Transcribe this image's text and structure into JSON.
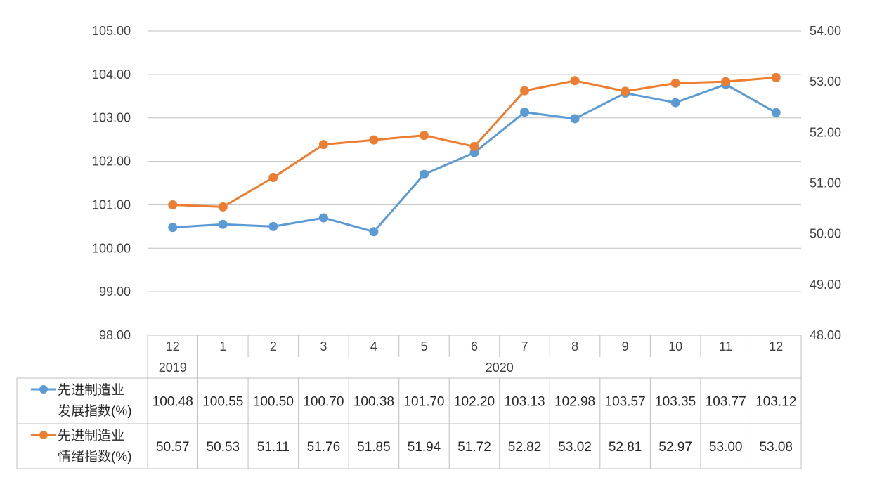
{
  "chart_data": {
    "type": "line",
    "x": [
      "12",
      "1",
      "2",
      "3",
      "4",
      "5",
      "6",
      "7",
      "8",
      "9",
      "10",
      "11",
      "12"
    ],
    "year_groups": [
      {
        "label": "2019",
        "start": 0,
        "end": 0
      },
      {
        "label": "2020",
        "start": 1,
        "end": 12
      }
    ],
    "y_left": {
      "ylim": [
        98,
        105
      ],
      "ticks": [
        "98.00",
        "99.00",
        "100.00",
        "101.00",
        "102.00",
        "103.00",
        "104.00",
        "105.00"
      ]
    },
    "y_right": {
      "ylim": [
        48,
        54
      ],
      "ticks": [
        "48.00",
        "49.00",
        "50.00",
        "51.00",
        "52.00",
        "53.00",
        "54.00"
      ]
    },
    "grid": true,
    "legend_placement": "table-left",
    "series": [
      {
        "name_lines": [
          "先进制造业",
          "发展指数(%)"
        ],
        "axis": "left",
        "color": "#5b9bd5",
        "values": [
          100.48,
          100.55,
          100.5,
          100.7,
          100.38,
          101.7,
          102.2,
          103.13,
          102.98,
          103.57,
          103.35,
          103.77,
          103.12
        ],
        "labels": [
          "100.48",
          "100.55",
          "100.50",
          "100.70",
          "100.38",
          "101.70",
          "102.20",
          "103.13",
          "102.98",
          "103.57",
          "103.35",
          "103.77",
          "103.12"
        ]
      },
      {
        "name_lines": [
          "先进制造业",
          "情绪指数(%)"
        ],
        "axis": "right",
        "color": "#ed7d31",
        "values": [
          50.57,
          50.53,
          51.11,
          51.76,
          51.85,
          51.94,
          51.72,
          52.82,
          53.02,
          52.81,
          52.97,
          53.0,
          53.08
        ],
        "labels": [
          "50.57",
          "50.53",
          "51.11",
          "51.76",
          "51.85",
          "51.94",
          "51.72",
          "52.82",
          "53.02",
          "52.81",
          "52.97",
          "53.00",
          "53.08"
        ]
      }
    ]
  }
}
